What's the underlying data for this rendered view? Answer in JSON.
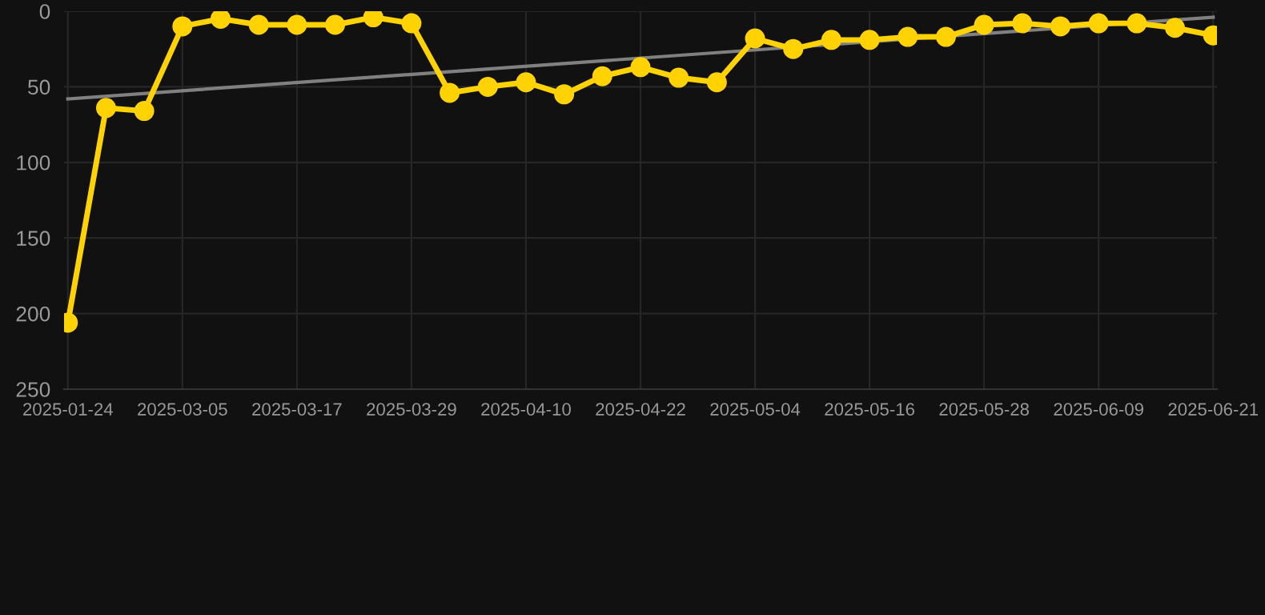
{
  "chart_data": {
    "type": "line",
    "categories": [
      "2025-01-24",
      null,
      null,
      "2025-03-05",
      null,
      null,
      "2025-03-17",
      null,
      null,
      "2025-03-29",
      null,
      null,
      "2025-04-10",
      null,
      null,
      "2025-04-22",
      null,
      null,
      "2025-05-04",
      null,
      null,
      "2025-05-16",
      null,
      null,
      "2025-05-28",
      null,
      null,
      "2025-06-09",
      null,
      null,
      "2025-06-21"
    ],
    "series": [
      {
        "color": "#ffd200",
        "marker": "circle",
        "values": [
          206,
          64,
          66,
          10,
          5,
          9,
          9,
          9,
          4,
          8,
          54,
          50,
          47,
          55,
          43,
          37,
          44,
          47,
          18,
          25,
          19,
          19,
          17,
          17,
          9,
          8,
          10,
          8,
          8,
          11,
          16
        ]
      },
      {
        "type": "line",
        "color": "#808080",
        "marker": "none",
        "values": [
          58,
          null,
          null,
          null,
          null,
          null,
          null,
          null,
          null,
          null,
          null,
          null,
          null,
          null,
          null,
          null,
          null,
          null,
          null,
          null,
          null,
          null,
          null,
          null,
          null,
          null,
          null,
          null,
          null,
          null,
          4
        ]
      }
    ],
    "ylim": [
      250,
      0
    ],
    "yticks": [
      0,
      50,
      100,
      150,
      200,
      250
    ],
    "grid": true,
    "line_style": "solid"
  }
}
